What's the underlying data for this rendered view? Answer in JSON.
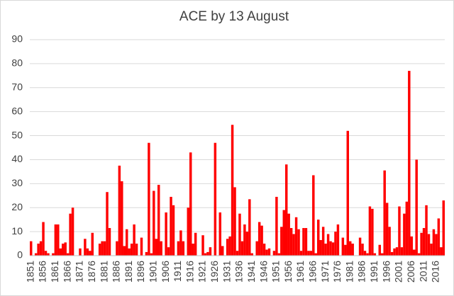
{
  "chart_data": {
    "type": "bar",
    "title": "ACE by 13 August",
    "categories": [
      "1851",
      null,
      null,
      null,
      null,
      "1856",
      null,
      null,
      null,
      null,
      "1861",
      null,
      null,
      null,
      null,
      "1866",
      null,
      null,
      null,
      null,
      "1871",
      null,
      null,
      null,
      null,
      "1876",
      null,
      null,
      null,
      null,
      "1881",
      null,
      null,
      null,
      null,
      "1886",
      null,
      null,
      null,
      null,
      "1891",
      null,
      null,
      null,
      null,
      "1896",
      null,
      null,
      null,
      null,
      "1901",
      null,
      null,
      null,
      null,
      "1906",
      null,
      null,
      null,
      null,
      "1911",
      null,
      null,
      null,
      null,
      "1916",
      null,
      null,
      null,
      null,
      "1921",
      null,
      null,
      null,
      null,
      "1926",
      null,
      null,
      null,
      null,
      "1931",
      null,
      null,
      null,
      null,
      "1936",
      null,
      null,
      null,
      null,
      "1941",
      null,
      null,
      null,
      null,
      "1946",
      null,
      null,
      null,
      null,
      "1951",
      null,
      null,
      null,
      null,
      "1956",
      null,
      null,
      null,
      null,
      "1961",
      null,
      null,
      null,
      null,
      "1966",
      null,
      null,
      null,
      null,
      "1971",
      null,
      null,
      null,
      null,
      "1976",
      null,
      null,
      null,
      null,
      "1981",
      null,
      null,
      null,
      null,
      "1986",
      null,
      null,
      null,
      null,
      "1991",
      null,
      null,
      null,
      null,
      "1996",
      null,
      null,
      null,
      null,
      "2001",
      null,
      null,
      null,
      null,
      "2006",
      null,
      null,
      null,
      null,
      "2011",
      null,
      null,
      null,
      null,
      "2016",
      null,
      null,
      null
    ],
    "values": [
      6,
      0,
      1,
      5,
      6,
      14,
      2,
      1,
      0,
      1,
      13,
      13,
      3,
      5,
      5.5,
      1,
      17.5,
      20,
      0,
      0,
      3,
      0,
      7,
      3,
      2,
      9.5,
      0,
      0,
      5,
      6,
      6,
      26.5,
      11.5,
      0,
      0,
      6,
      37.5,
      31,
      4,
      11,
      3,
      5,
      13,
      5,
      0,
      7.5,
      0,
      1.5,
      47,
      1,
      27,
      7,
      29.5,
      6,
      0,
      18,
      3.5,
      24.5,
      21,
      0,
      6,
      10.5,
      6,
      0,
      20,
      43,
      5,
      9.5,
      0,
      0,
      8.5,
      1,
      1.5,
      3.5,
      0,
      47,
      0,
      18,
      4,
      0,
      7,
      8,
      54.5,
      28.5,
      2,
      17.5,
      6,
      13,
      10,
      23.5,
      1,
      0,
      6,
      14,
      12.5,
      5,
      2.5,
      3,
      0,
      2,
      24.5,
      1,
      12,
      19,
      38,
      17.5,
      11.5,
      9,
      16,
      11,
      2,
      11.5,
      11.5,
      2,
      2,
      33.5,
      1,
      15,
      6.5,
      12,
      5,
      9,
      6,
      5.5,
      10,
      13,
      0,
      7.5,
      4.5,
      52,
      6,
      5,
      0,
      0,
      7.5,
      5,
      2,
      1,
      20.5,
      19.5,
      1,
      0,
      4.5,
      1,
      35.5,
      22,
      12,
      1.5,
      3,
      3.5,
      20.5,
      3.5,
      17.5,
      22.5,
      77,
      8,
      2.5,
      40,
      1,
      9.5,
      11.5,
      21,
      9,
      5,
      11,
      9,
      15.5,
      3.5,
      23
    ],
    "color": "#ff0000",
    "ylim": [
      0,
      90
    ],
    "yticks": [
      0,
      10,
      20,
      30,
      40,
      50,
      60,
      70,
      80,
      90
    ],
    "grid": true
  }
}
